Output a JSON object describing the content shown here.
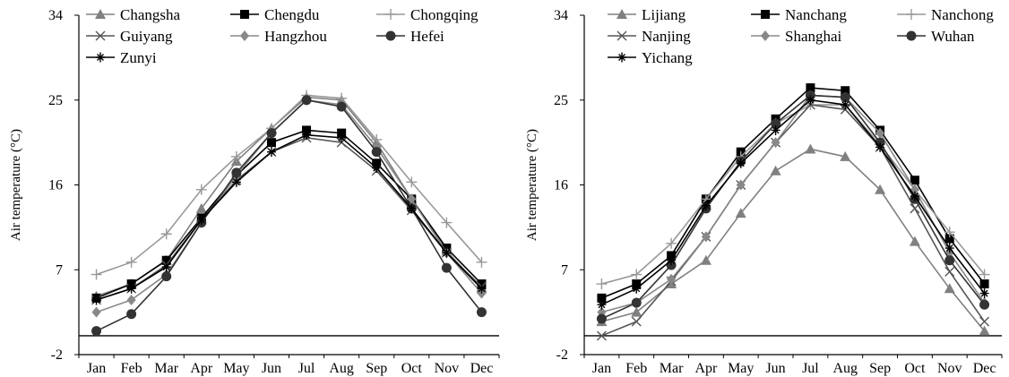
{
  "chart_data": [
    {
      "type": "line",
      "ylabel": "Air temperature (°C)",
      "xlabel": "",
      "ylim": [
        -2,
        34
      ],
      "yticks": [
        "-2",
        "7",
        "16",
        "25",
        "34"
      ],
      "categories": [
        "Jan",
        "Feb",
        "Mar",
        "Apr",
        "May",
        "Jun",
        "Jul",
        "Aug",
        "Sep",
        "Oct",
        "Nov",
        "Dec"
      ],
      "zero_line": true,
      "grid": false,
      "legend_position": "top",
      "series": [
        {
          "name": "Changsha",
          "marker": "triangle",
          "color": "#808080",
          "values": [
            4.2,
            5.5,
            8.0,
            13.5,
            18.5,
            22.0,
            25.3,
            25.0,
            20.5,
            14.5,
            9.0,
            5.0
          ]
        },
        {
          "name": "Chengdu",
          "marker": "square",
          "color": "#000000",
          "values": [
            4.0,
            5.5,
            8.0,
            12.5,
            17.0,
            20.5,
            21.8,
            21.5,
            18.3,
            14.5,
            9.3,
            5.5
          ]
        },
        {
          "name": "Chongqing",
          "marker": "plus",
          "color": "#999999",
          "values": [
            6.5,
            7.8,
            10.8,
            15.5,
            19.0,
            22.0,
            25.5,
            25.2,
            20.8,
            16.3,
            12.0,
            7.8
          ]
        },
        {
          "name": "Guiyang",
          "marker": "x",
          "color": "#555555",
          "values": [
            3.8,
            5.0,
            7.5,
            12.3,
            16.5,
            19.5,
            21.0,
            20.5,
            17.5,
            13.3,
            8.8,
            5.2
          ]
        },
        {
          "name": "Hangzhou",
          "marker": "diamond",
          "color": "#888888",
          "values": [
            2.5,
            3.8,
            6.5,
            12.0,
            17.0,
            21.5,
            25.0,
            24.5,
            20.0,
            14.5,
            8.8,
            4.5
          ]
        },
        {
          "name": "Hefei",
          "marker": "circle",
          "color": "#333333",
          "values": [
            0.5,
            2.3,
            6.3,
            12.0,
            17.3,
            21.5,
            25.0,
            24.3,
            19.5,
            13.5,
            7.2,
            2.5
          ]
        },
        {
          "name": "Zunyi",
          "marker": "asterisk",
          "color": "#000000",
          "values": [
            3.8,
            5.0,
            7.3,
            12.3,
            16.3,
            19.5,
            21.3,
            21.0,
            17.8,
            13.5,
            8.8,
            5.0
          ]
        }
      ]
    },
    {
      "type": "line",
      "ylabel": "Air temperature (°C)",
      "xlabel": "",
      "ylim": [
        -2,
        34
      ],
      "yticks": [
        "-2",
        "7",
        "16",
        "25",
        "34"
      ],
      "categories": [
        "Jan",
        "Feb",
        "Mar",
        "Apr",
        "May",
        "Jun",
        "Jul",
        "Aug",
        "Sep",
        "Oct",
        "Nov",
        "Dec"
      ],
      "zero_line": true,
      "grid": false,
      "legend_position": "top",
      "series": [
        {
          "name": "Lijiang",
          "marker": "triangle",
          "color": "#808080",
          "values": [
            1.5,
            2.5,
            5.5,
            8.0,
            13.0,
            17.5,
            19.8,
            19.0,
            15.5,
            10.0,
            5.0,
            0.5
          ]
        },
        {
          "name": "Nanchang",
          "marker": "square",
          "color": "#000000",
          "values": [
            4.0,
            5.5,
            8.5,
            14.5,
            19.5,
            23.0,
            26.3,
            26.0,
            21.8,
            16.5,
            10.3,
            5.5
          ]
        },
        {
          "name": "Nanchong",
          "marker": "plus",
          "color": "#999999",
          "values": [
            5.5,
            6.5,
            9.8,
            14.5,
            19.0,
            22.5,
            24.5,
            24.5,
            20.3,
            15.5,
            11.0,
            6.5
          ]
        },
        {
          "name": "Nanjing",
          "marker": "x",
          "color": "#555555",
          "values": [
            0.0,
            1.5,
            5.8,
            10.5,
            16.0,
            20.5,
            24.5,
            24.0,
            20.0,
            13.5,
            6.8,
            1.5
          ]
        },
        {
          "name": "Shanghai",
          "marker": "diamond",
          "color": "#888888",
          "values": [
            2.5,
            3.5,
            6.0,
            10.5,
            16.0,
            20.5,
            25.5,
            25.3,
            21.5,
            15.5,
            8.8,
            3.5
          ]
        },
        {
          "name": "Wuhan",
          "marker": "circle",
          "color": "#333333",
          "values": [
            1.8,
            3.5,
            7.5,
            13.5,
            18.5,
            22.5,
            25.5,
            25.3,
            20.5,
            14.5,
            8.0,
            3.3
          ]
        },
        {
          "name": "Yichang",
          "marker": "asterisk",
          "color": "#000000",
          "values": [
            3.3,
            5.0,
            8.0,
            13.8,
            18.3,
            21.8,
            25.0,
            24.5,
            20.0,
            14.8,
            9.3,
            4.5
          ]
        }
      ]
    }
  ]
}
